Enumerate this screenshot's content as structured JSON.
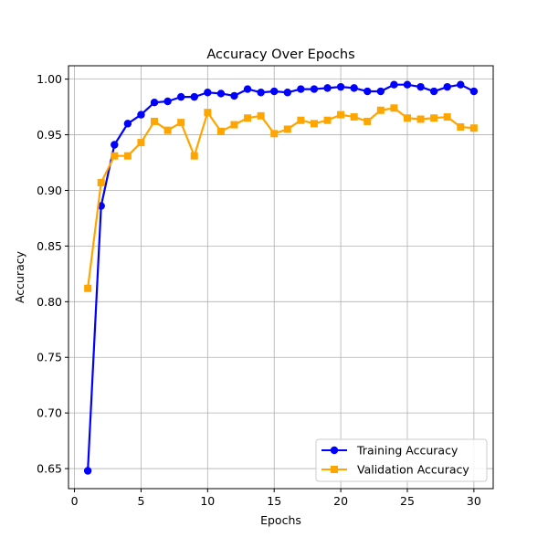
{
  "chart_data": {
    "type": "line",
    "title": "Accuracy Over Epochs",
    "xlabel": "Epochs",
    "ylabel": "Accuracy",
    "xlim": [
      -0.45,
      31.45
    ],
    "ylim": [
      0.632,
      1.012
    ],
    "xticks": [
      0,
      5,
      10,
      15,
      20,
      25,
      30
    ],
    "xtick_labels": [
      "0",
      "5",
      "10",
      "15",
      "20",
      "25",
      "30"
    ],
    "yticks": [
      0.65,
      0.7,
      0.75,
      0.8,
      0.85,
      0.9,
      0.95,
      1.0
    ],
    "ytick_labels": [
      "0.65",
      "0.70",
      "0.75",
      "0.80",
      "0.85",
      "0.90",
      "0.95",
      "1.00"
    ],
    "grid": true,
    "legend_position": "bottom-right",
    "x": [
      1,
      2,
      3,
      4,
      5,
      6,
      7,
      8,
      9,
      10,
      11,
      12,
      13,
      14,
      15,
      16,
      17,
      18,
      19,
      20,
      21,
      22,
      23,
      24,
      25,
      26,
      27,
      28,
      29,
      30
    ],
    "series": [
      {
        "name": "Training Accuracy",
        "color": "#0000ff",
        "marker": "circle",
        "values": [
          0.648,
          0.886,
          0.941,
          0.96,
          0.968,
          0.979,
          0.98,
          0.984,
          0.984,
          0.988,
          0.987,
          0.985,
          0.991,
          0.988,
          0.989,
          0.988,
          0.991,
          0.991,
          0.992,
          0.993,
          0.992,
          0.989,
          0.989,
          0.995,
          0.995,
          0.993,
          0.989,
          0.993,
          0.995,
          0.989
        ]
      },
      {
        "name": "Validation Accuracy",
        "color": "#ffa500",
        "marker": "square",
        "values": [
          0.812,
          0.907,
          0.931,
          0.931,
          0.943,
          0.962,
          0.954,
          0.961,
          0.931,
          0.97,
          0.953,
          0.959,
          0.965,
          0.967,
          0.951,
          0.955,
          0.963,
          0.96,
          0.963,
          0.968,
          0.966,
          0.962,
          0.972,
          0.974,
          0.965,
          0.964,
          0.965,
          0.966,
          0.957,
          0.956
        ]
      }
    ]
  }
}
